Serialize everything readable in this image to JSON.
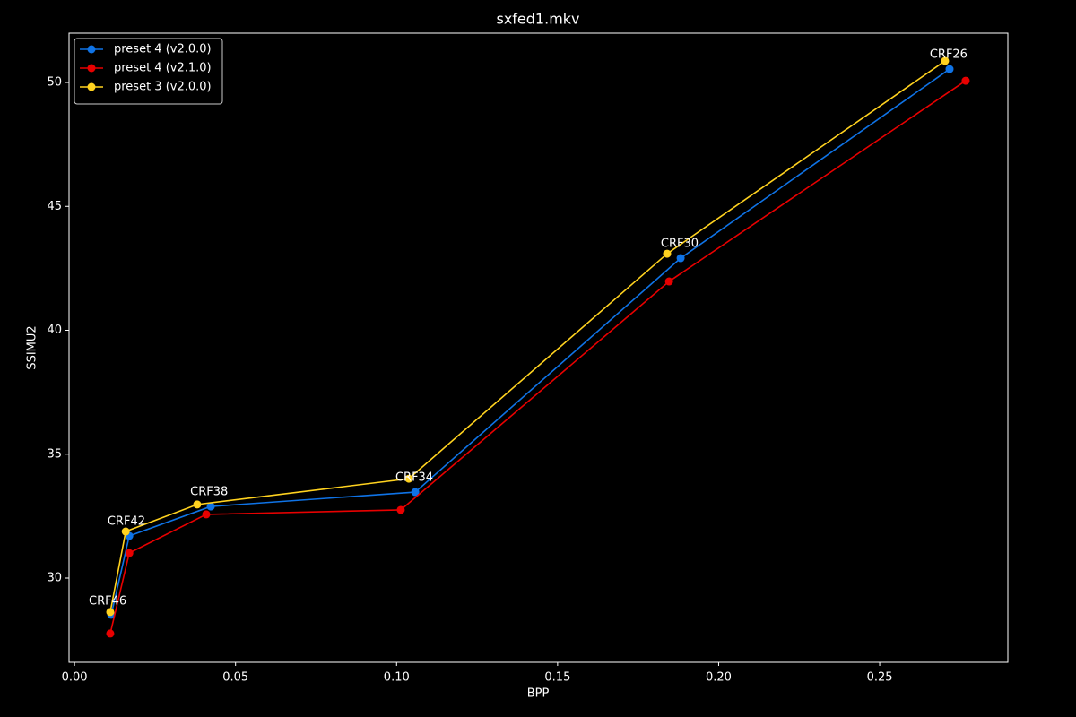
{
  "chart_data": {
    "type": "line",
    "title": "sxfed1.mkv",
    "x_label": "BPP",
    "y_label": "SSIMU2",
    "xlim": [
      -0.0017,
      0.2898
    ],
    "ylim": [
      26.6,
      51.99
    ],
    "xticks": [
      {
        "value": 0,
        "label": "0.00"
      },
      {
        "value": 0.05,
        "label": "0.05"
      },
      {
        "value": 0.1,
        "label": "0.10"
      },
      {
        "value": 0.15,
        "label": "0.15"
      },
      {
        "value": 0.2,
        "label": "0.20"
      },
      {
        "value": 0.25,
        "label": "0.25"
      }
    ],
    "yticks": [
      30,
      35,
      40,
      45,
      50
    ],
    "grid": false,
    "legend": "upper left",
    "series": [
      {
        "name": "preset 4 (v2.0.0)",
        "color": "#0f73e6",
        "x": [
          0.0114,
          0.017,
          0.0423,
          0.1058,
          0.1882,
          0.2717
        ],
        "values": [
          28.52,
          31.7,
          32.89,
          33.47,
          42.91,
          50.54
        ]
      },
      {
        "name": "preset 4 (v2.1.0)",
        "color": "#e80000",
        "x": [
          0.0111,
          0.017,
          0.0409,
          0.1013,
          0.1846,
          0.2767
        ],
        "values": [
          27.76,
          31.01,
          32.57,
          32.75,
          41.97,
          50.07
        ]
      },
      {
        "name": "preset 3 (v2.0.0)",
        "color": "#ffd21f",
        "x": [
          0.0111,
          0.0159,
          0.0381,
          0.1038,
          0.184,
          0.2703
        ],
        "values": [
          28.63,
          31.88,
          32.97,
          34.01,
          43.09,
          50.87
        ]
      }
    ],
    "annotations": [
      {
        "text": "CRF46",
        "x": 0.0103,
        "y": 29.06
      },
      {
        "text": "CRF42",
        "x": 0.0161,
        "y": 32.28
      },
      {
        "text": "CRF38",
        "x": 0.0418,
        "y": 33.47
      },
      {
        "text": "CRF34",
        "x": 0.1055,
        "y": 34.05
      },
      {
        "text": "CRF30",
        "x": 0.1879,
        "y": 43.49
      },
      {
        "text": "CRF26",
        "x": 0.2714,
        "y": 51.12
      }
    ]
  }
}
